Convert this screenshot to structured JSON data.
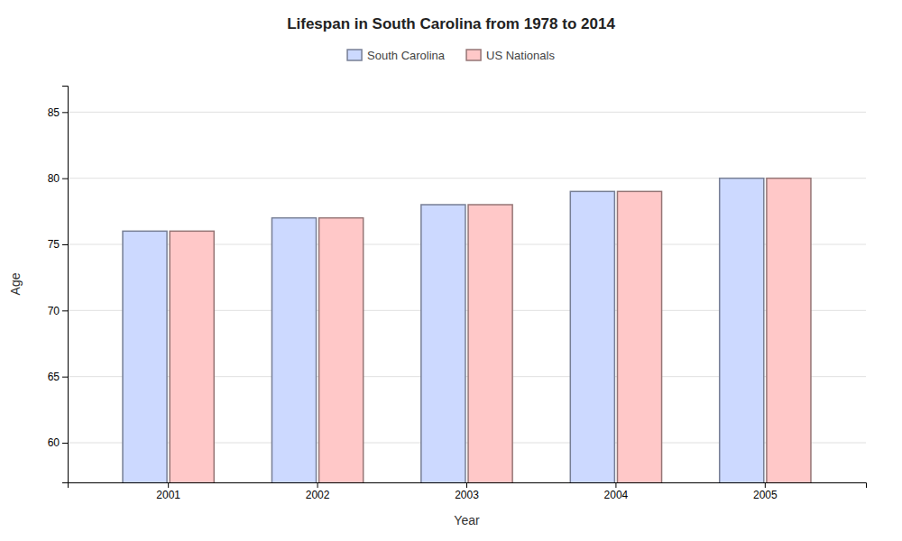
{
  "chart_data": {
    "type": "bar",
    "title": "Lifespan in South Carolina from 1978 to 2014",
    "x_label": "Year",
    "y_label": "Age",
    "categories": [
      "2001",
      "2002",
      "2003",
      "2004",
      "2005"
    ],
    "series": [
      {
        "name": "South Carolina",
        "color": "#ccd9ff",
        "values": [
          76,
          77,
          78,
          79,
          80
        ]
      },
      {
        "name": "US Nationals",
        "color": "#ffc8c8",
        "values": [
          76,
          77,
          78,
          79,
          80
        ]
      }
    ],
    "ylim": [
      57,
      87
    ],
    "yticks": [
      60,
      65,
      70,
      75,
      80,
      85
    ],
    "grid": true,
    "legend": "top"
  }
}
